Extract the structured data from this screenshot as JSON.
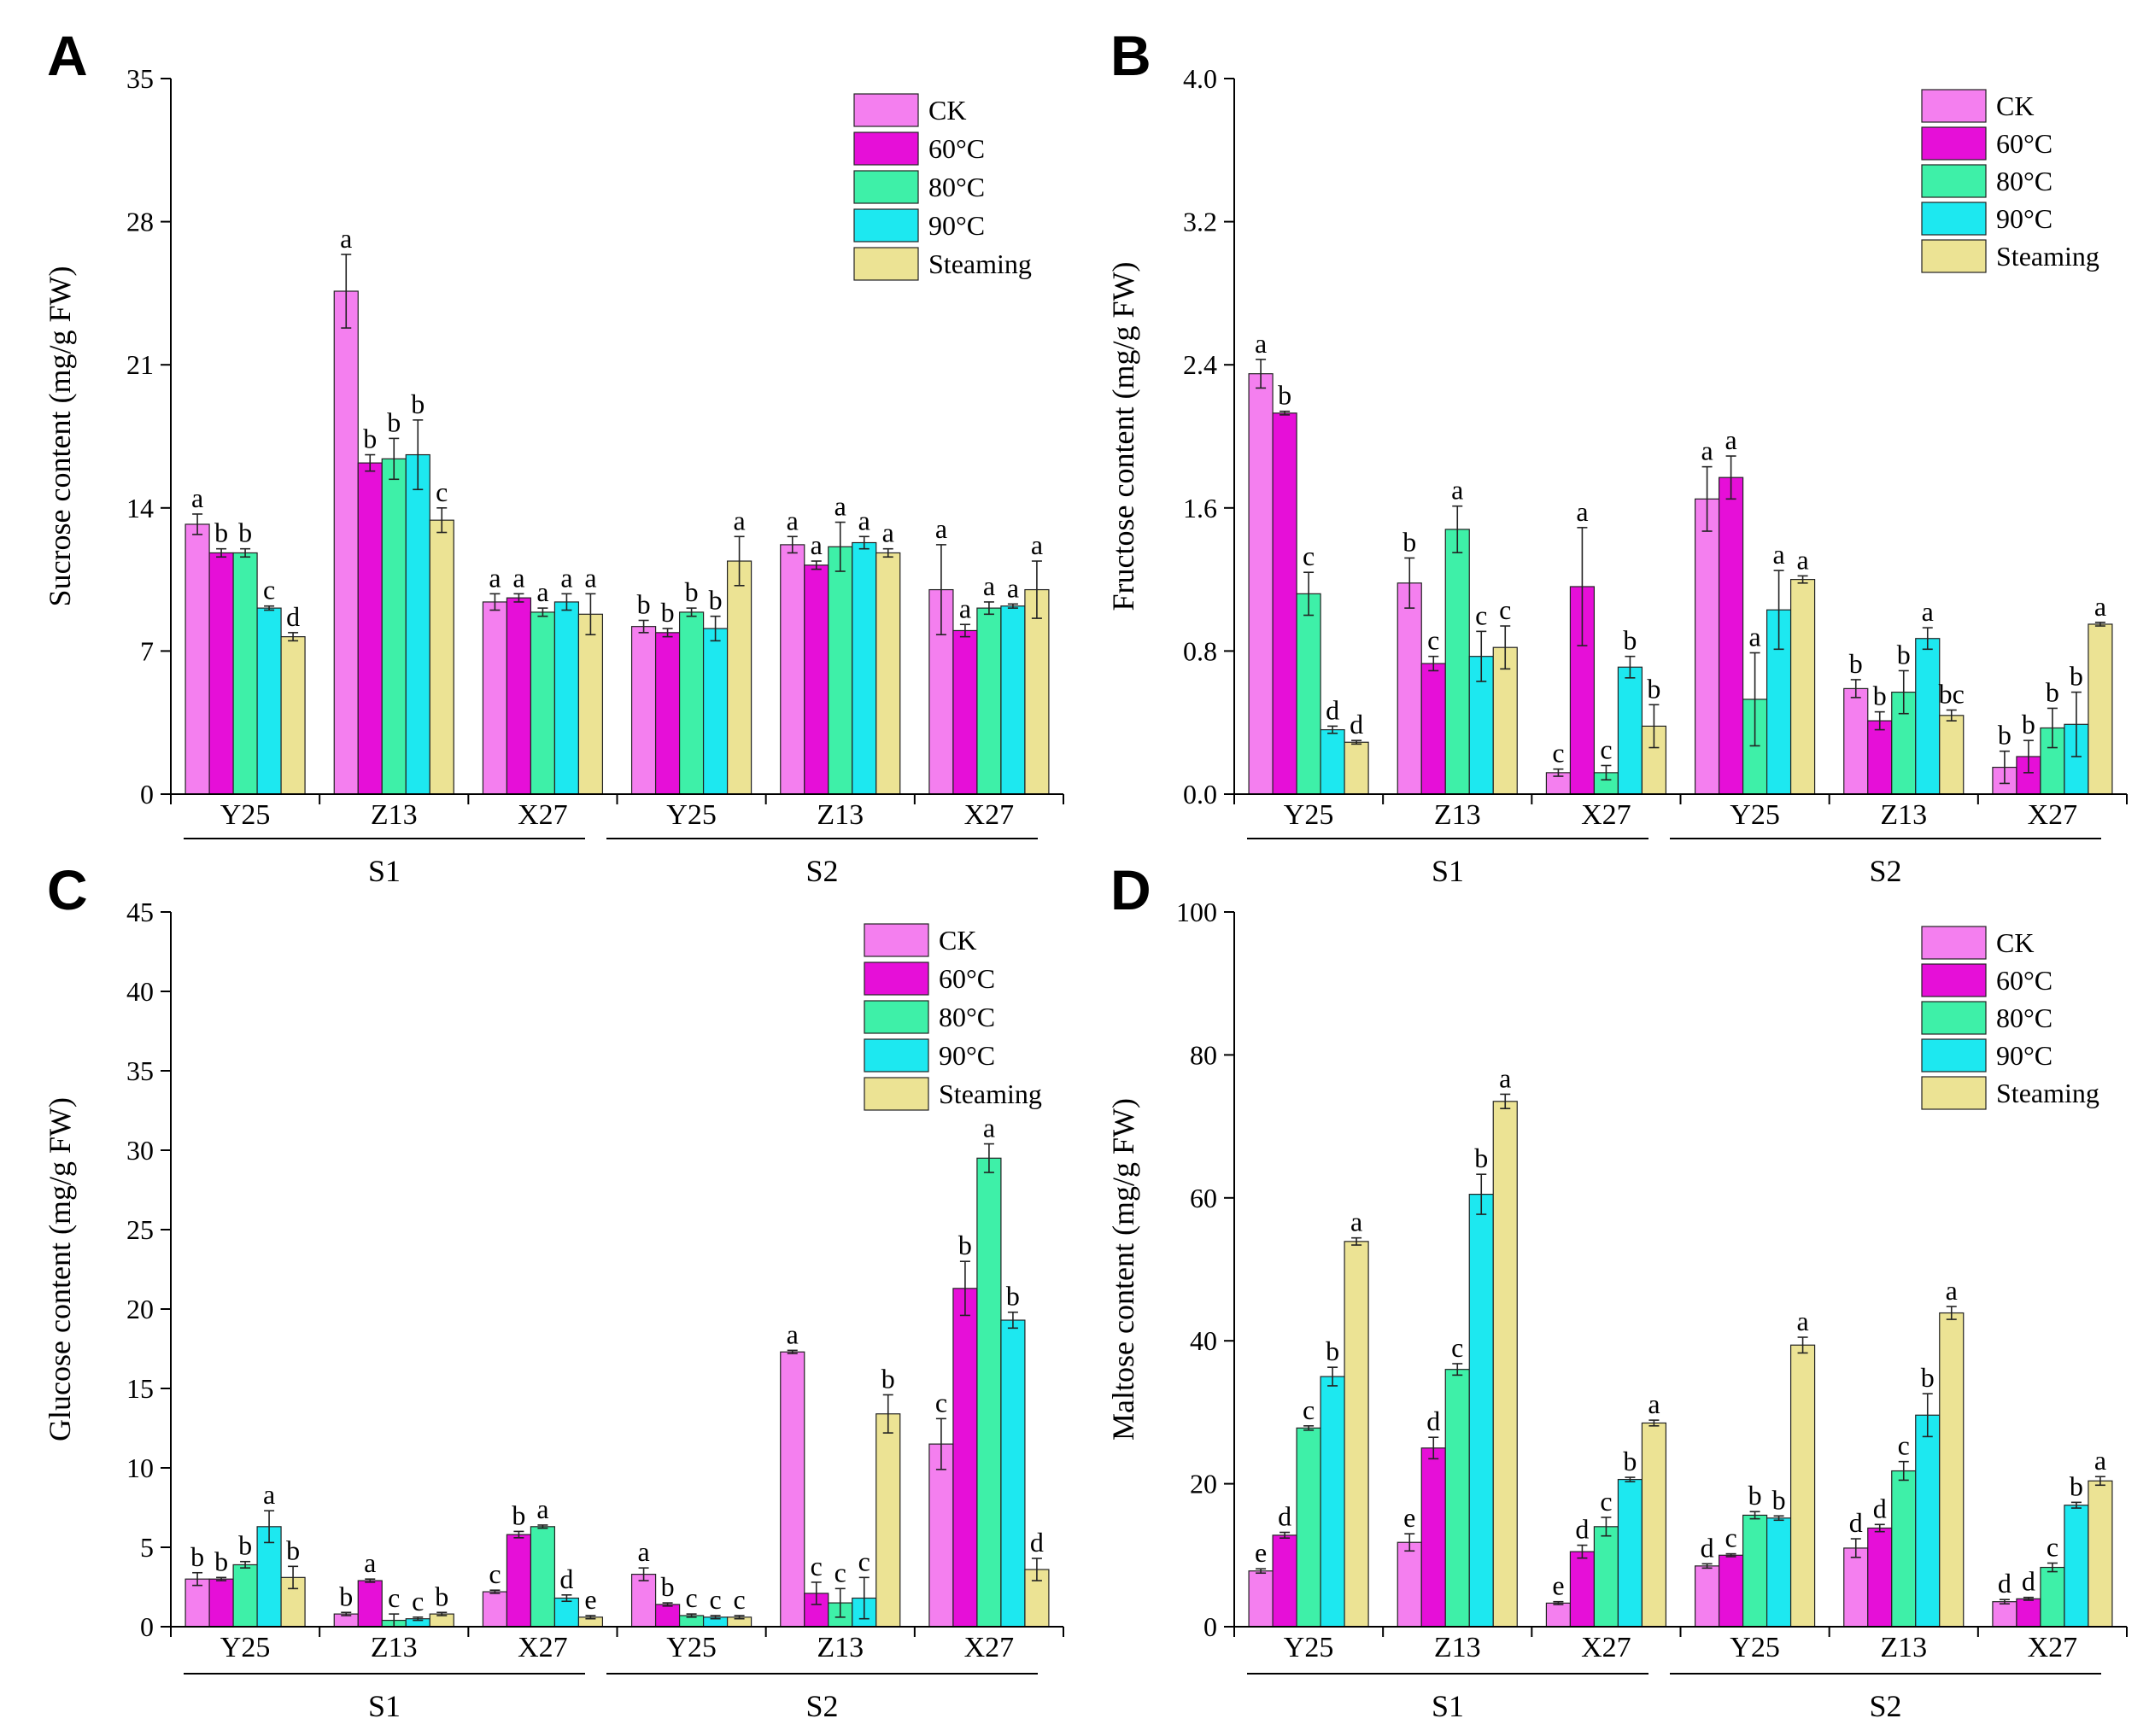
{
  "figure": {
    "treatments": [
      "CK",
      "60°C",
      "80°C",
      "90°C",
      "Steaming"
    ],
    "colors": [
      "#f47fef",
      "#e60fd8",
      "#3ef0a8",
      "#1de8f0",
      "#ece394"
    ],
    "varieties": [
      "Y25",
      "Z13",
      "X27"
    ],
    "stages": [
      "S1",
      "S2"
    ]
  },
  "chart_data": [
    {
      "type": "bar",
      "panel": "A",
      "ylabel": "Sucrose content (mg/g FW)",
      "ylim": [
        0,
        35
      ],
      "yticks": [
        0,
        7,
        14,
        21,
        28,
        35
      ],
      "groups": [
        "Y25",
        "Z13",
        "X27",
        "Y25",
        "Z13",
        "X27"
      ],
      "stages": [
        "S1",
        "S2"
      ],
      "series": [
        {
          "name": "CK",
          "values": [
            13.2,
            24.6,
            9.4,
            8.2,
            12.2,
            10.0
          ],
          "errors": [
            0.5,
            1.8,
            0.4,
            0.3,
            0.4,
            2.2
          ],
          "letters": [
            "a",
            "a",
            "a",
            "b",
            "a",
            "a"
          ]
        },
        {
          "name": "60°C",
          "values": [
            11.8,
            16.2,
            9.6,
            7.9,
            11.2,
            8.0
          ],
          "errors": [
            0.2,
            0.4,
            0.2,
            0.2,
            0.2,
            0.3
          ],
          "letters": [
            "b",
            "b",
            "a",
            "b",
            "a",
            "a"
          ]
        },
        {
          "name": "80°C",
          "values": [
            11.8,
            16.4,
            8.9,
            8.9,
            12.1,
            9.1
          ],
          "errors": [
            0.2,
            1.0,
            0.2,
            0.2,
            1.2,
            0.3
          ],
          "letters": [
            "b",
            "b",
            "a",
            "b",
            "a",
            "a"
          ]
        },
        {
          "name": "90°C",
          "values": [
            9.1,
            16.6,
            9.4,
            8.1,
            12.3,
            9.2
          ],
          "errors": [
            0.1,
            1.7,
            0.4,
            0.6,
            0.3,
            0.1
          ],
          "letters": [
            "c",
            "b",
            "a",
            "b",
            "a",
            "a"
          ]
        },
        {
          "name": "Steaming",
          "values": [
            7.7,
            13.4,
            8.8,
            11.4,
            11.8,
            10.0
          ],
          "errors": [
            0.2,
            0.6,
            1.0,
            1.2,
            0.2,
            1.4
          ],
          "letters": [
            "d",
            "c",
            "a",
            "a",
            "a",
            "a"
          ]
        }
      ]
    },
    {
      "type": "bar",
      "panel": "B",
      "ylabel": "Fructose content (mg/g FW)",
      "ylim": [
        0,
        4.0
      ],
      "yticks": [
        0.0,
        0.8,
        1.6,
        2.4,
        3.2,
        4.0
      ],
      "groups": [
        "Y25",
        "Z13",
        "X27",
        "Y25",
        "Z13",
        "X27"
      ],
      "stages": [
        "S1",
        "S2"
      ],
      "series": [
        {
          "name": "CK",
          "values": [
            2.35,
            1.18,
            0.12,
            1.65,
            0.59,
            0.15
          ],
          "errors": [
            0.08,
            0.14,
            0.02,
            0.18,
            0.05,
            0.09
          ],
          "letters": [
            "a",
            "b",
            "c",
            "a",
            "b",
            "b"
          ]
        },
        {
          "name": "60°C",
          "values": [
            2.13,
            0.73,
            1.16,
            1.77,
            0.41,
            0.21
          ],
          "errors": [
            0.01,
            0.04,
            0.33,
            0.12,
            0.05,
            0.09
          ],
          "letters": [
            "b",
            "c",
            "a",
            "a",
            "b",
            "b"
          ]
        },
        {
          "name": "80°C",
          "values": [
            1.12,
            1.48,
            0.12,
            0.53,
            0.57,
            0.37
          ],
          "errors": [
            0.12,
            0.13,
            0.04,
            0.26,
            0.12,
            0.11
          ],
          "letters": [
            "c",
            "a",
            "c",
            "a",
            "b",
            "b"
          ]
        },
        {
          "name": "90°C",
          "values": [
            0.36,
            0.77,
            0.71,
            1.03,
            0.87,
            0.39
          ],
          "errors": [
            0.02,
            0.14,
            0.06,
            0.22,
            0.06,
            0.18
          ],
          "letters": [
            "d",
            "c",
            "b",
            "a",
            "a",
            "b"
          ]
        },
        {
          "name": "Steaming",
          "values": [
            0.29,
            0.82,
            0.38,
            1.2,
            0.44,
            0.95
          ],
          "errors": [
            0.01,
            0.12,
            0.12,
            0.02,
            0.03,
            0.01
          ],
          "letters": [
            "d",
            "c",
            "b",
            "a",
            "bc",
            "a"
          ]
        }
      ]
    },
    {
      "type": "bar",
      "panel": "C",
      "ylabel": "Glucose content (mg/g FW)",
      "ylim": [
        0,
        45
      ],
      "yticks": [
        0,
        5,
        10,
        15,
        20,
        25,
        30,
        35,
        40,
        45
      ],
      "groups": [
        "Y25",
        "Z13",
        "X27",
        "Y25",
        "Z13",
        "X27"
      ],
      "stages": [
        "S1",
        "S2"
      ],
      "series": [
        {
          "name": "CK",
          "values": [
            3.0,
            0.8,
            2.2,
            3.3,
            17.3,
            11.5
          ],
          "errors": [
            0.4,
            0.1,
            0.1,
            0.4,
            0.1,
            1.6
          ],
          "letters": [
            "b",
            "b",
            "c",
            "a",
            "a",
            "c"
          ]
        },
        {
          "name": "60°C",
          "values": [
            3.0,
            2.9,
            5.8,
            1.4,
            2.1,
            21.3
          ],
          "errors": [
            0.1,
            0.1,
            0.2,
            0.1,
            0.7,
            1.7
          ],
          "letters": [
            "b",
            "a",
            "b",
            "b",
            "c",
            "b"
          ]
        },
        {
          "name": "80°C",
          "values": [
            3.9,
            0.4,
            6.3,
            0.7,
            1.5,
            29.5
          ],
          "errors": [
            0.2,
            0.4,
            0.1,
            0.1,
            0.9,
            0.9
          ],
          "letters": [
            "b",
            "c",
            "a",
            "c",
            "c",
            "a"
          ]
        },
        {
          "name": "90°C",
          "values": [
            6.3,
            0.5,
            1.8,
            0.6,
            1.8,
            19.3
          ],
          "errors": [
            1.0,
            0.1,
            0.2,
            0.1,
            1.3,
            0.5
          ],
          "letters": [
            "a",
            "c",
            "d",
            "c",
            "c",
            "b"
          ]
        },
        {
          "name": "Steaming",
          "values": [
            3.1,
            0.8,
            0.6,
            0.6,
            13.4,
            3.6
          ],
          "errors": [
            0.7,
            0.1,
            0.1,
            0.1,
            1.2,
            0.7
          ],
          "letters": [
            "b",
            "b",
            "e",
            "c",
            "b",
            "d"
          ]
        }
      ]
    },
    {
      "type": "bar",
      "panel": "D",
      "ylabel": "Maltose content (mg/g FW)",
      "ylim": [
        0,
        100
      ],
      "yticks": [
        0,
        20,
        40,
        60,
        80,
        100
      ],
      "groups": [
        "Y25",
        "Z13",
        "X27",
        "Y25",
        "Z13",
        "X27"
      ],
      "stages": [
        "S1",
        "S2"
      ],
      "series": [
        {
          "name": "CK",
          "values": [
            7.8,
            11.8,
            3.3,
            8.5,
            11.0,
            3.5
          ],
          "errors": [
            0.3,
            1.2,
            0.2,
            0.3,
            1.3,
            0.3
          ],
          "letters": [
            "e",
            "e",
            "e",
            "d",
            "d",
            "d"
          ]
        },
        {
          "name": "60°C",
          "values": [
            12.8,
            25.0,
            10.5,
            10.0,
            13.8,
            3.9
          ],
          "errors": [
            0.4,
            1.5,
            0.9,
            0.2,
            0.5,
            0.2
          ],
          "letters": [
            "d",
            "d",
            "d",
            "c",
            "d",
            "d"
          ]
        },
        {
          "name": "80°C",
          "values": [
            27.8,
            36.0,
            14.0,
            15.6,
            21.8,
            8.3
          ],
          "errors": [
            0.3,
            0.8,
            1.3,
            0.5,
            1.3,
            0.6
          ],
          "letters": [
            "c",
            "c",
            "c",
            "b",
            "c",
            "c"
          ]
        },
        {
          "name": "90°C",
          "values": [
            35.0,
            60.5,
            20.6,
            15.2,
            29.6,
            17.0
          ],
          "errors": [
            1.3,
            2.8,
            0.3,
            0.3,
            3.0,
            0.4
          ],
          "letters": [
            "b",
            "b",
            "b",
            "b",
            "b",
            "b"
          ]
        },
        {
          "name": "Steaming",
          "values": [
            53.9,
            73.5,
            28.5,
            39.4,
            43.9,
            20.4
          ],
          "errors": [
            0.5,
            1.0,
            0.4,
            1.1,
            0.9,
            0.6
          ],
          "letters": [
            "a",
            "a",
            "a",
            "a",
            "a",
            "a"
          ]
        }
      ]
    }
  ]
}
